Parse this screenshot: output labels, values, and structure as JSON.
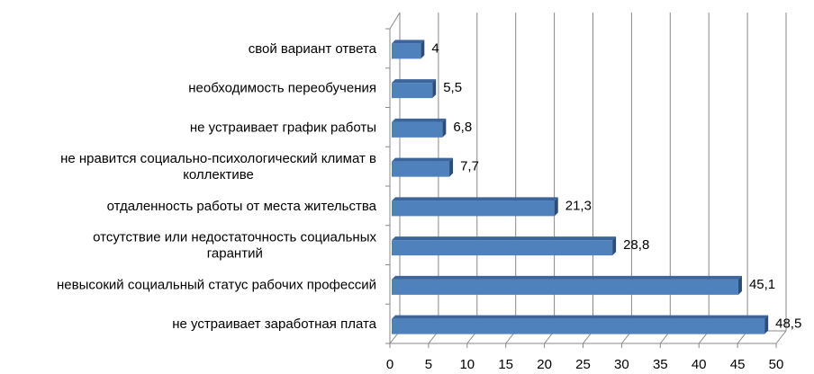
{
  "chart_data": {
    "type": "bar",
    "orientation": "horizontal",
    "title": "",
    "xlabel": "",
    "ylabel": "",
    "categories": [
      [
        "свой вариант ответа"
      ],
      [
        "необходимость переобучения"
      ],
      [
        "не устраивает график работы"
      ],
      [
        "не нравится социально-психологический климат в",
        "коллективе"
      ],
      [
        "отдаленность работы от места жительства"
      ],
      [
        "отсутствие или недостаточность социальных",
        "гарантий"
      ],
      [
        "невысокий социальный статус рабочих профессий"
      ],
      [
        "не устраивает заработная плата"
      ]
    ],
    "values": [
      4,
      5.5,
      6.8,
      7.7,
      21.3,
      28.8,
      45.1,
      48.5
    ],
    "value_labels": [
      "4",
      "5,5",
      "6,8",
      "7,7",
      "21,3",
      "28,8",
      "45,1",
      "48,5"
    ],
    "xlim": [
      0,
      50
    ],
    "xticks": [
      0,
      5,
      10,
      15,
      20,
      25,
      30,
      35,
      40,
      45,
      50
    ],
    "xtick_labels": [
      "0",
      "5",
      "10",
      "15",
      "20",
      "25",
      "30",
      "35",
      "40",
      "45",
      "50"
    ],
    "grid": "vertical",
    "legend": "none",
    "bar_color": "#4f81bd",
    "bar_top_color": "#3c659c",
    "bar_side_color": "#2c4d7a",
    "grid_color": "#888888"
  }
}
